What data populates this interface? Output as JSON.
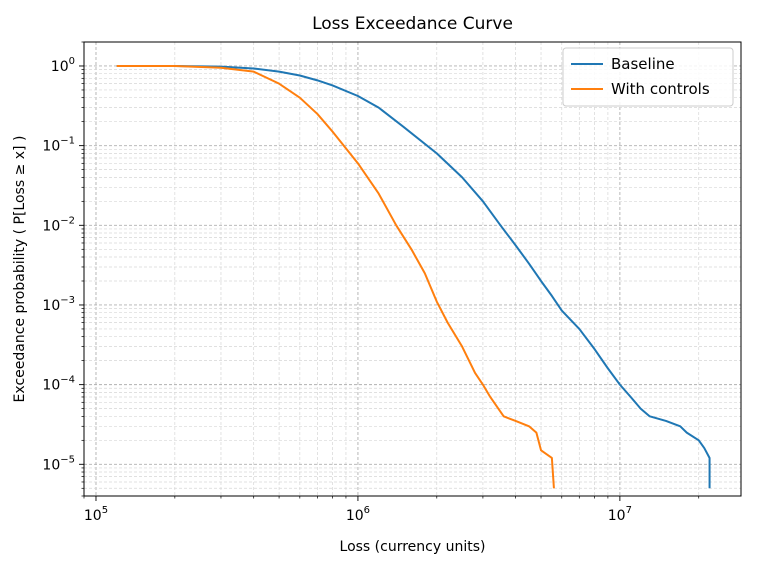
{
  "chart_data": {
    "type": "line",
    "title": "Loss Exceedance Curve",
    "xlabel": "Loss (currency units)",
    "ylabel": "Exceedance probability  ( P[Loss ≥ x] )",
    "xscale": "log",
    "yscale": "log",
    "xlim": [
      90000,
      29000000
    ],
    "ylim": [
      4e-06,
      2
    ],
    "grid": true,
    "legend_position": "top-right",
    "x_ticks": [
      {
        "value": 100000,
        "base": "10",
        "exp": "5"
      },
      {
        "value": 1000000,
        "base": "10",
        "exp": "6"
      },
      {
        "value": 10000000,
        "base": "10",
        "exp": "7"
      }
    ],
    "y_ticks": [
      {
        "value": 1,
        "base": "10",
        "exp": "0"
      },
      {
        "value": 0.1,
        "base": "10",
        "exp": "−1"
      },
      {
        "value": 0.01,
        "base": "10",
        "exp": "−2"
      },
      {
        "value": 0.001,
        "base": "10",
        "exp": "−3"
      },
      {
        "value": 0.0001,
        "base": "10",
        "exp": "−4"
      },
      {
        "value": 1e-05,
        "base": "10",
        "exp": "−5"
      }
    ],
    "series": [
      {
        "name": "Baseline",
        "color": "#1f77b4",
        "points": [
          [
            120000,
            1.0
          ],
          [
            200000,
            1.0
          ],
          [
            300000,
            0.98
          ],
          [
            400000,
            0.93
          ],
          [
            500000,
            0.85
          ],
          [
            600000,
            0.76
          ],
          [
            700000,
            0.66
          ],
          [
            800000,
            0.57
          ],
          [
            1000000,
            0.42
          ],
          [
            1200000,
            0.3
          ],
          [
            1500000,
            0.17
          ],
          [
            2000000,
            0.08
          ],
          [
            2500000,
            0.04
          ],
          [
            3000000,
            0.02
          ],
          [
            3500000,
            0.01
          ],
          [
            4000000,
            0.0056
          ],
          [
            4500000,
            0.0033
          ],
          [
            5000000,
            0.002
          ],
          [
            5500000,
            0.0013
          ],
          [
            6000000,
            0.00085
          ],
          [
            7000000,
            0.0005
          ],
          [
            8000000,
            0.00028
          ],
          [
            9000000,
            0.00016
          ],
          [
            10000000,
            0.0001
          ],
          [
            11000000,
            7e-05
          ],
          [
            12000000,
            5e-05
          ],
          [
            13000000,
            4e-05
          ],
          [
            15000000,
            3.5e-05
          ],
          [
            17000000,
            3e-05
          ],
          [
            18000000,
            2.5e-05
          ],
          [
            20000000,
            2e-05
          ],
          [
            21000000,
            1.6e-05
          ],
          [
            22000000,
            1.2e-05
          ],
          [
            22000000,
            5e-06
          ]
        ]
      },
      {
        "name": "With controls",
        "color": "#ff7f0e",
        "points": [
          [
            120000,
            1.0
          ],
          [
            200000,
            1.0
          ],
          [
            300000,
            0.95
          ],
          [
            400000,
            0.85
          ],
          [
            500000,
            0.6
          ],
          [
            600000,
            0.4
          ],
          [
            700000,
            0.25
          ],
          [
            800000,
            0.15
          ],
          [
            1000000,
            0.06
          ],
          [
            1200000,
            0.025
          ],
          [
            1400000,
            0.01
          ],
          [
            1600000,
            0.005
          ],
          [
            1800000,
            0.0025
          ],
          [
            2000000,
            0.0011
          ],
          [
            2200000,
            0.0006
          ],
          [
            2500000,
            0.0003
          ],
          [
            2800000,
            0.00014
          ],
          [
            3000000,
            0.0001
          ],
          [
            3200000,
            7e-05
          ],
          [
            3600000,
            4e-05
          ],
          [
            4000000,
            3.5e-05
          ],
          [
            4500000,
            3e-05
          ],
          [
            4800000,
            2.5e-05
          ],
          [
            5000000,
            1.5e-05
          ],
          [
            5500000,
            1.2e-05
          ],
          [
            5600000,
            5e-06
          ]
        ]
      }
    ]
  }
}
